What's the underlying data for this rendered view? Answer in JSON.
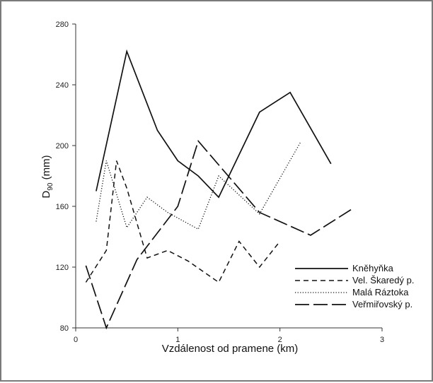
{
  "chart_data": {
    "type": "line",
    "xlabel": "Vzdálenost od pramene (km)",
    "ylabel_main": "D",
    "ylabel_sub": "90",
    "ylabel_unit": " (mm)",
    "xlim": [
      0,
      3
    ],
    "ylim": [
      80,
      280
    ],
    "xticks": [
      0,
      1,
      2,
      3
    ],
    "yticks": [
      80,
      120,
      160,
      200,
      240,
      280
    ],
    "grid": false,
    "legend_position": "bottom-right",
    "series": [
      {
        "name": "Kněhyňka",
        "style": "solid",
        "points": [
          [
            0.2,
            170
          ],
          [
            0.5,
            262
          ],
          [
            0.8,
            210
          ],
          [
            1.0,
            190
          ],
          [
            1.2,
            180
          ],
          [
            1.4,
            166
          ],
          [
            1.8,
            222
          ],
          [
            2.1,
            235
          ],
          [
            2.5,
            188
          ]
        ]
      },
      {
        "name": "Vel. Škaredý p.",
        "style": "dashed",
        "points": [
          [
            0.1,
            110
          ],
          [
            0.3,
            131
          ],
          [
            0.4,
            190
          ],
          [
            0.5,
            172
          ],
          [
            0.7,
            126
          ],
          [
            0.9,
            131
          ],
          [
            1.1,
            124
          ],
          [
            1.4,
            110
          ],
          [
            1.6,
            137
          ],
          [
            1.8,
            120
          ],
          [
            2.0,
            137
          ]
        ]
      },
      {
        "name": "Malá Ráztoka",
        "style": "dotted",
        "points": [
          [
            0.2,
            150
          ],
          [
            0.3,
            190
          ],
          [
            0.5,
            146
          ],
          [
            0.7,
            166
          ],
          [
            0.9,
            156
          ],
          [
            1.2,
            145
          ],
          [
            1.4,
            180
          ],
          [
            1.8,
            155
          ],
          [
            2.2,
            202
          ]
        ]
      },
      {
        "name": "Veřmiřovský p.",
        "style": "longdash",
        "points": [
          [
            0.1,
            121
          ],
          [
            0.3,
            80
          ],
          [
            0.6,
            125
          ],
          [
            1.0,
            160
          ],
          [
            1.2,
            203
          ],
          [
            1.8,
            156
          ],
          [
            2.3,
            141
          ],
          [
            2.7,
            158
          ]
        ]
      }
    ]
  }
}
